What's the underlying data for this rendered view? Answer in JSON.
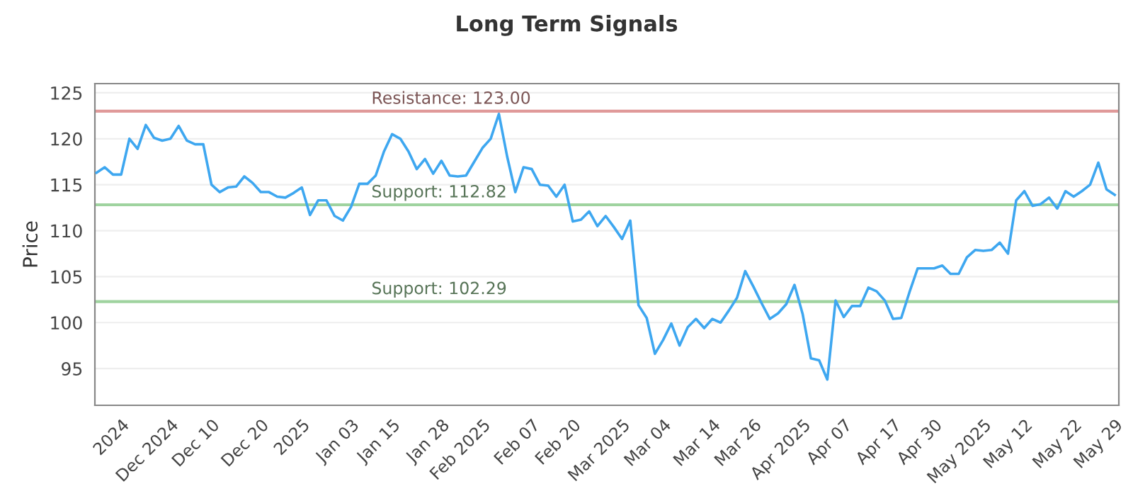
{
  "chart_data": {
    "type": "line",
    "title": "Long Term Signals",
    "ylabel": "Price",
    "categories": [
      null,
      null,
      null,
      "2024",
      null,
      null,
      null,
      null,
      null,
      "Dec 2024",
      null,
      null,
      null,
      null,
      "Dec 10",
      null,
      null,
      null,
      null,
      null,
      "Dec 20",
      null,
      null,
      null,
      null,
      "2025",
      null,
      null,
      null,
      null,
      null,
      "Jan 03",
      null,
      null,
      null,
      null,
      "Jan 15",
      null,
      null,
      null,
      null,
      null,
      "Jan 28",
      null,
      null,
      null,
      null,
      "Feb 2025",
      null,
      null,
      null,
      null,
      null,
      "Feb 07",
      null,
      null,
      null,
      null,
      "Feb 20",
      null,
      null,
      null,
      null,
      null,
      "Mar 2025",
      null,
      null,
      null,
      null,
      "Mar 04",
      null,
      null,
      null,
      null,
      null,
      "Mar 14",
      null,
      null,
      null,
      null,
      "Mar 26",
      null,
      null,
      null,
      null,
      null,
      "Apr 2025",
      null,
      null,
      null,
      null,
      "Apr 07",
      null,
      null,
      null,
      null,
      null,
      "Apr 17",
      null,
      null,
      null,
      null,
      "Apr 30",
      null,
      null,
      null,
      null,
      null,
      "May 2025",
      null,
      null,
      null,
      null,
      "May 12",
      null,
      null,
      null,
      null,
      null,
      "May 22",
      null,
      null,
      null,
      null,
      "May 29"
    ],
    "series": [
      {
        "color": "#3ea7f0",
        "values": [
          116.3,
          116.9,
          116.1,
          116.1,
          120.0,
          118.9,
          121.5,
          120.1,
          119.8,
          120.0,
          121.4,
          119.8,
          119.4,
          119.4,
          115.0,
          114.2,
          114.7,
          114.8,
          115.9,
          115.2,
          114.2,
          114.2,
          113.7,
          113.6,
          114.1,
          114.7,
          111.7,
          113.3,
          113.3,
          111.6,
          111.1,
          112.6,
          115.1,
          115.1,
          116.0,
          118.6,
          120.5,
          120.0,
          118.6,
          116.7,
          117.8,
          116.2,
          117.6,
          116.0,
          115.9,
          116.0,
          117.5,
          119.0,
          120.0,
          122.7,
          118.1,
          114.2,
          116.9,
          116.7,
          115.0,
          114.9,
          113.7,
          115.0,
          111.0,
          111.2,
          112.1,
          110.5,
          111.6,
          110.4,
          109.1,
          111.1,
          101.9,
          100.5,
          96.6,
          98.1,
          99.9,
          97.5,
          99.5,
          100.4,
          99.4,
          100.4,
          100.0,
          101.3,
          102.7,
          105.6,
          103.9,
          102.1,
          100.4,
          101.0,
          102.0,
          104.1,
          100.9,
          96.1,
          95.9,
          93.8,
          102.4,
          100.6,
          101.8,
          101.8,
          103.8,
          103.4,
          102.4,
          100.4,
          100.5,
          103.3,
          105.9,
          105.9,
          105.9,
          106.2,
          105.3,
          105.3,
          107.1,
          107.9,
          107.8,
          107.9,
          108.7,
          107.5,
          113.3,
          114.3,
          112.7,
          112.9,
          113.6,
          112.4,
          114.3,
          113.7,
          114.3,
          115.0,
          117.4,
          114.5,
          113.9
        ]
      }
    ],
    "ylim": [
      91,
      126
    ],
    "yticks": [
      95,
      100,
      105,
      110,
      115,
      120,
      125
    ],
    "grid": "y",
    "marker": "none",
    "line_style": "solid",
    "ref_lines": [
      {
        "axis": "y",
        "value": 123.0,
        "label": "Resistance: 123.00",
        "color": "#e09a9a"
      },
      {
        "axis": "y",
        "value": 112.82,
        "label": "Support: 112.82",
        "color": "#9fd39f"
      },
      {
        "axis": "y",
        "value": 102.29,
        "label": "Support: 102.29",
        "color": "#9fd39f"
      }
    ]
  }
}
